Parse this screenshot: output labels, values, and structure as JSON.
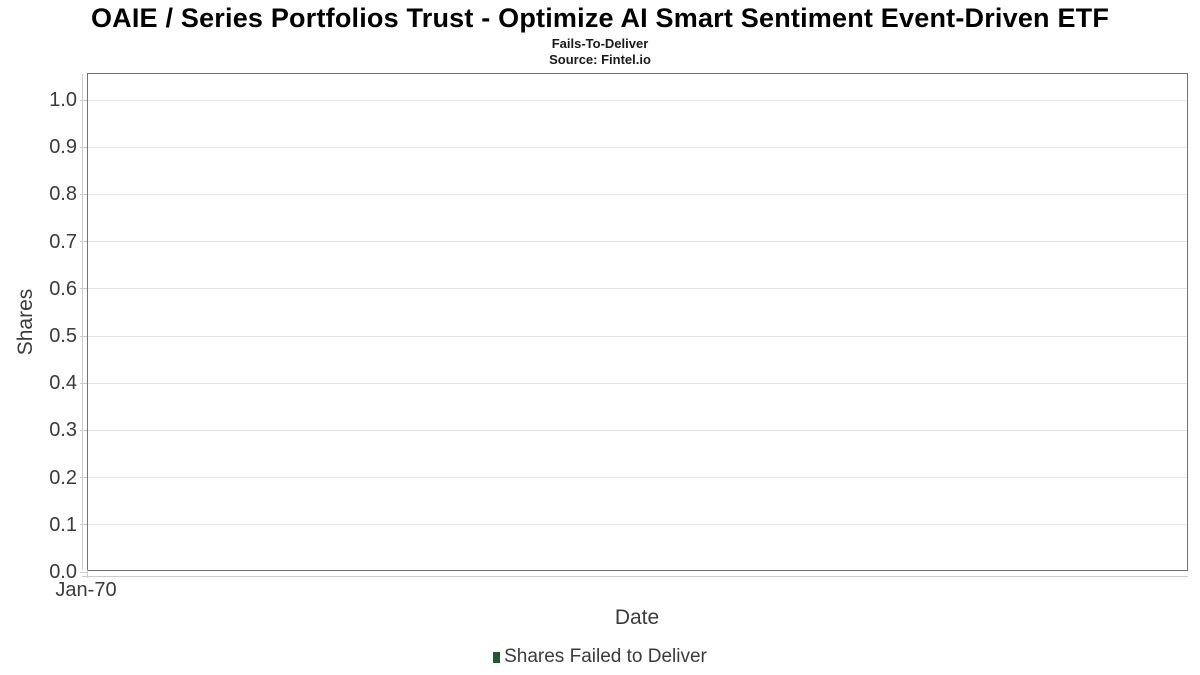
{
  "chart_data": {
    "type": "bar",
    "title": "OAIE / Series Portfolios Trust - Optimize AI Smart Sentiment Event-Driven ETF",
    "subtitle": "Fails-To-Deliver",
    "source": "Source: Fintel.io",
    "xlabel": "Date",
    "ylabel": "Shares",
    "x_tick_labels": [
      "Jan-70"
    ],
    "y_tick_labels": [
      "0.0",
      "0.1",
      "0.2",
      "0.3",
      "0.4",
      "0.5",
      "0.6",
      "0.7",
      "0.8",
      "0.9",
      "1.0"
    ],
    "y_ticks": [
      0.0,
      0.1,
      0.2,
      0.3,
      0.4,
      0.5,
      0.6,
      0.7,
      0.8,
      0.9,
      1.0
    ],
    "ylim": [
      0.0,
      1.0
    ],
    "grid": true,
    "legend_position": "bottom",
    "legend": [
      {
        "label": "Shares Failed to Deliver",
        "marker_color": "#1d5a32"
      }
    ],
    "series": [
      {
        "name": "Shares Failed to Deliver",
        "x": [],
        "values": []
      }
    ],
    "colors": {
      "frame_border": "#737373",
      "gridline": "#e5e5e5",
      "axis_line": "#cccccc",
      "title_text": "#000000",
      "axis_text": "#3b3b3b"
    }
  }
}
